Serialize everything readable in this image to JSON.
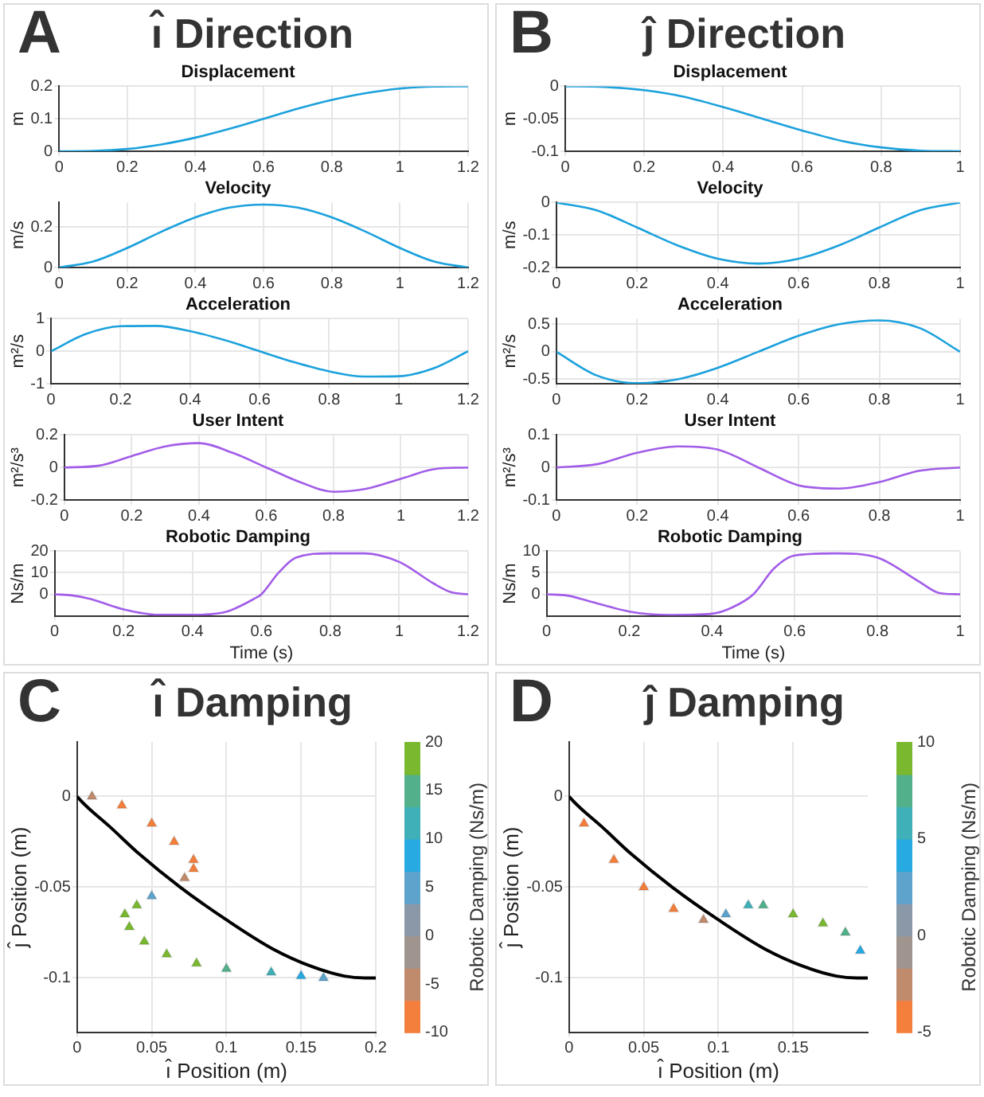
{
  "chart_data": [
    {
      "type": "line",
      "annotations": [
        "A",
        "ı̂ Direction"
      ],
      "title": "Displacement",
      "ylabel": "m",
      "x": [
        0,
        0.1,
        0.2,
        0.3,
        0.4,
        0.5,
        0.6,
        0.7,
        0.8,
        0.9,
        1,
        1.1,
        1.2
      ],
      "series": [
        {
          "color": "#1ba1dc",
          "values": [
            0,
            0.001,
            0.007,
            0.021,
            0.042,
            0.069,
            0.1,
            0.131,
            0.158,
            0.179,
            0.193,
            0.199,
            0.2
          ]
        }
      ],
      "xlim": [
        0,
        1.2
      ],
      "ylim": [
        0,
        0.2
      ],
      "xticks": [
        0,
        0.2,
        0.4,
        0.6,
        0.8,
        1,
        1.2
      ],
      "yticks": [
        0,
        0.1,
        0.2
      ],
      "grid": true
    },
    {
      "type": "line",
      "title": "Velocity",
      "ylabel": "m/s",
      "x": [
        0,
        0.1,
        0.2,
        0.3,
        0.4,
        0.5,
        0.6,
        0.7,
        0.8,
        0.9,
        1,
        1.1,
        1.2
      ],
      "series": [
        {
          "color": "#1ba1dc",
          "values": [
            0,
            0.029,
            0.096,
            0.176,
            0.247,
            0.295,
            0.31,
            0.295,
            0.247,
            0.176,
            0.096,
            0.029,
            0
          ]
        }
      ],
      "xlim": [
        0,
        1.2
      ],
      "ylim": [
        0,
        0.32
      ],
      "xticks": [
        0,
        0.2,
        0.4,
        0.6,
        0.8,
        1,
        1.2
      ],
      "yticks": [
        0,
        0.2
      ],
      "grid": true
    },
    {
      "type": "line",
      "title": "Acceleration",
      "ylabel": "m²/s",
      "x": [
        0,
        0.1,
        0.2,
        0.3,
        0.4,
        0.5,
        0.6,
        0.7,
        0.8,
        0.9,
        1,
        1.1,
        1.2
      ],
      "series": [
        {
          "color": "#1ba1dc",
          "values": [
            0,
            0.53,
            0.77,
            0.78,
            0.62,
            0.34,
            0,
            -0.34,
            -0.62,
            -0.78,
            -0.77,
            -0.53,
            0
          ]
        }
      ],
      "xlim": [
        0,
        1.2
      ],
      "ylim": [
        -1,
        1
      ],
      "xticks": [
        0,
        0.2,
        0.4,
        0.6,
        0.8,
        1,
        1.2
      ],
      "yticks": [
        -1,
        0,
        1
      ],
      "grid": true
    },
    {
      "type": "line",
      "title": "User Intent",
      "ylabel": "m²/s³",
      "x": [
        0,
        0.1,
        0.2,
        0.3,
        0.4,
        0.5,
        0.6,
        0.7,
        0.8,
        0.9,
        1,
        1.1,
        1.2
      ],
      "series": [
        {
          "color": "#a25de8",
          "values": [
            0,
            0.01,
            0.07,
            0.13,
            0.15,
            0.09,
            0,
            -0.09,
            -0.15,
            -0.13,
            -0.07,
            -0.01,
            0
          ]
        }
      ],
      "xlim": [
        0,
        1.2
      ],
      "ylim": [
        -0.2,
        0.2
      ],
      "xticks": [
        0,
        0.2,
        0.4,
        0.6,
        0.8,
        1,
        1.2
      ],
      "yticks": [
        -0.2,
        0,
        0.2
      ],
      "grid": true
    },
    {
      "type": "line",
      "title": "Robotic Damping",
      "ylabel": "Ns/m",
      "xlabel": "Time (s)",
      "x": [
        0,
        0.05,
        0.1,
        0.2,
        0.3,
        0.4,
        0.5,
        0.58,
        0.6,
        0.65,
        0.7,
        0.8,
        0.9,
        1,
        1.1,
        1.15,
        1.2
      ],
      "series": [
        {
          "color": "#a25de8",
          "values": [
            0,
            -0.5,
            -2,
            -7,
            -9.5,
            -9.5,
            -8,
            -2,
            0,
            10,
            17,
            19,
            19,
            15,
            5,
            1,
            0
          ]
        }
      ],
      "xlim": [
        0,
        1.2
      ],
      "ylim": [
        -10,
        20
      ],
      "xticks": [
        0,
        0.2,
        0.4,
        0.6,
        0.8,
        1,
        1.2
      ],
      "yticks": [
        0,
        10,
        20
      ],
      "grid": true
    },
    {
      "type": "line",
      "annotations": [
        "B",
        "ȷ̂ Direction"
      ],
      "title": "Displacement",
      "ylabel": "m",
      "x": [
        0,
        0.1,
        0.2,
        0.3,
        0.4,
        0.5,
        0.6,
        0.7,
        0.8,
        0.9,
        1
      ],
      "series": [
        {
          "color": "#1ba1dc",
          "values": [
            0,
            -0.001,
            -0.006,
            -0.016,
            -0.032,
            -0.05,
            -0.068,
            -0.084,
            -0.094,
            -0.099,
            -0.1
          ]
        }
      ],
      "xlim": [
        0,
        1
      ],
      "ylim": [
        -0.1,
        0
      ],
      "xticks": [
        0,
        0.2,
        0.4,
        0.6,
        0.8,
        1
      ],
      "yticks": [
        -0.1,
        -0.05,
        0
      ],
      "grid": true
    },
    {
      "type": "line",
      "title": "Velocity",
      "ylabel": "m/s",
      "x": [
        0,
        0.1,
        0.2,
        0.3,
        0.4,
        0.5,
        0.6,
        0.7,
        0.8,
        0.9,
        1
      ],
      "series": [
        {
          "color": "#1ba1dc",
          "values": [
            0,
            -0.024,
            -0.077,
            -0.132,
            -0.173,
            -0.188,
            -0.173,
            -0.132,
            -0.077,
            -0.024,
            0
          ]
        }
      ],
      "xlim": [
        0,
        1
      ],
      "ylim": [
        -0.2,
        0
      ],
      "xticks": [
        0,
        0.2,
        0.4,
        0.6,
        0.8,
        1
      ],
      "yticks": [
        -0.2,
        -0.1,
        0
      ],
      "grid": true
    },
    {
      "type": "line",
      "title": "Acceleration",
      "ylabel": "m²/s",
      "x": [
        0,
        0.1,
        0.2,
        0.3,
        0.4,
        0.5,
        0.6,
        0.7,
        0.8,
        0.9,
        1
      ],
      "series": [
        {
          "color": "#1ba1dc",
          "values": [
            0,
            -0.43,
            -0.57,
            -0.5,
            -0.29,
            0,
            0.29,
            0.5,
            0.57,
            0.43,
            0
          ]
        }
      ],
      "xlim": [
        0,
        1
      ],
      "ylim": [
        -0.58,
        0.6
      ],
      "xticks": [
        0,
        0.2,
        0.4,
        0.6,
        0.8,
        1
      ],
      "yticks": [
        -0.5,
        0,
        0.5
      ],
      "grid": true
    },
    {
      "type": "line",
      "title": "User Intent",
      "ylabel": "m²/s³",
      "x": [
        0,
        0.1,
        0.2,
        0.3,
        0.4,
        0.5,
        0.6,
        0.7,
        0.8,
        0.9,
        1
      ],
      "series": [
        {
          "color": "#a25de8",
          "values": [
            0,
            0.01,
            0.045,
            0.065,
            0.055,
            0,
            -0.055,
            -0.065,
            -0.045,
            -0.01,
            0
          ]
        }
      ],
      "xlim": [
        0,
        1
      ],
      "ylim": [
        -0.1,
        0.1
      ],
      "xticks": [
        0,
        0.2,
        0.4,
        0.6,
        0.8,
        1
      ],
      "yticks": [
        -0.1,
        0,
        0.1
      ],
      "grid": true
    },
    {
      "type": "line",
      "title": "Robotic Damping",
      "ylabel": "Ns/m",
      "xlabel": "Time (s)",
      "x": [
        0,
        0.05,
        0.1,
        0.2,
        0.3,
        0.4,
        0.45,
        0.5,
        0.55,
        0.6,
        0.7,
        0.8,
        0.9,
        0.95,
        1
      ],
      "series": [
        {
          "color": "#a25de8",
          "values": [
            0,
            -0.3,
            -1.5,
            -4,
            -4.8,
            -4.5,
            -3,
            0,
            6,
            9,
            9.5,
            8.5,
            3,
            0.3,
            0
          ]
        }
      ],
      "xlim": [
        0,
        1
      ],
      "ylim": [
        -5,
        10
      ],
      "xticks": [
        0,
        0.2,
        0.4,
        0.6,
        0.8,
        1
      ],
      "yticks": [
        0,
        5,
        10
      ],
      "grid": true
    },
    {
      "type": "line",
      "annotations": [
        "C"
      ],
      "title": "ı̂ Damping",
      "xlabel": "ı̂ Position (m)",
      "ylabel": "ȷ̂ Position (m)",
      "clabel": "Robotic Damping (Ns/m)",
      "clim": [
        -10,
        20
      ],
      "cticks": [
        -10,
        -5,
        0,
        5,
        10,
        15,
        20
      ],
      "series": [
        {
          "color": "#000000",
          "x": [
            0,
            0.001,
            0.007,
            0.021,
            0.042,
            0.069,
            0.1,
            0.131,
            0.158,
            0.179,
            0.193,
            0.199,
            0.2
          ],
          "values": [
            0,
            -0.001,
            -0.006,
            -0.016,
            -0.032,
            -0.05,
            -0.068,
            -0.084,
            -0.094,
            -0.099,
            -0.1,
            -0.1,
            -0.1
          ]
        },
        {
          "type": "scatter",
          "marker": "triangle",
          "x": [
            0.01,
            0.03,
            0.05,
            0.065,
            0.078,
            0.078,
            0.072,
            0.05,
            0.04,
            0.032,
            0.035,
            0.045,
            0.06,
            0.08,
            0.1,
            0.13,
            0.15,
            0.165
          ],
          "values": [
            0,
            -0.005,
            -0.015,
            -0.025,
            -0.035,
            -0.04,
            -0.045,
            -0.055,
            -0.06,
            -0.065,
            -0.072,
            -0.08,
            -0.087,
            -0.092,
            -0.095,
            -0.097,
            -0.099,
            -0.1
          ],
          "colors": [
            "#c08a6c",
            "#f47f3c",
            "#f47f3c",
            "#f47f3c",
            "#f47f3c",
            "#f47f3c",
            "#c08a6c",
            "#5da3cc",
            "#79b82f",
            "#79b82f",
            "#79b82f",
            "#79b82f",
            "#79b82f",
            "#79b82f",
            "#52b08a",
            "#3fb0b8",
            "#27a9e1",
            "#5da3cc"
          ]
        }
      ],
      "xlim": [
        0,
        0.2
      ],
      "ylim": [
        -0.13,
        0.03
      ],
      "xticks": [
        0,
        0.05,
        0.1,
        0.15,
        0.2
      ],
      "yticks": [
        -0.1,
        -0.05,
        0
      ],
      "grid": true
    },
    {
      "type": "line",
      "annotations": [
        "D"
      ],
      "title": "ȷ̂ Damping",
      "xlabel": "ı̂ Position (m)",
      "ylabel": "ȷ̂ Position (m)",
      "clabel": "Robotic Damping (Ns/m)",
      "clim": [
        -5,
        10
      ],
      "cticks": [
        -5,
        0,
        5,
        10
      ],
      "series": [
        {
          "color": "#000000",
          "x": [
            0,
            0.001,
            0.007,
            0.021,
            0.042,
            0.069,
            0.1,
            0.131,
            0.158,
            0.179,
            0.193,
            0.199,
            0.2
          ],
          "values": [
            0,
            -0.001,
            -0.006,
            -0.016,
            -0.032,
            -0.05,
            -0.068,
            -0.084,
            -0.094,
            -0.099,
            -0.1,
            -0.1,
            -0.1
          ]
        },
        {
          "type": "scatter",
          "marker": "triangle",
          "x": [
            0.01,
            0.03,
            0.05,
            0.07,
            0.09,
            0.105,
            0.12,
            0.13,
            0.15,
            0.17,
            0.185,
            0.195
          ],
          "values": [
            -0.015,
            -0.035,
            -0.05,
            -0.062,
            -0.068,
            -0.065,
            -0.06,
            -0.06,
            -0.065,
            -0.07,
            -0.075,
            -0.085
          ],
          "colors": [
            "#f47f3c",
            "#f47f3c",
            "#f47f3c",
            "#f47f3c",
            "#c08a6c",
            "#5da3cc",
            "#3fb0b8",
            "#52b08a",
            "#79b82f",
            "#79b82f",
            "#52b08a",
            "#27a9e1"
          ]
        }
      ],
      "xlim": [
        0,
        0.2
      ],
      "ylim": [
        -0.13,
        0.03
      ],
      "xticks": [
        0,
        0.05,
        0.1,
        0.15
      ],
      "yticks": [
        -0.1,
        -0.05,
        0
      ],
      "grid": true
    }
  ]
}
